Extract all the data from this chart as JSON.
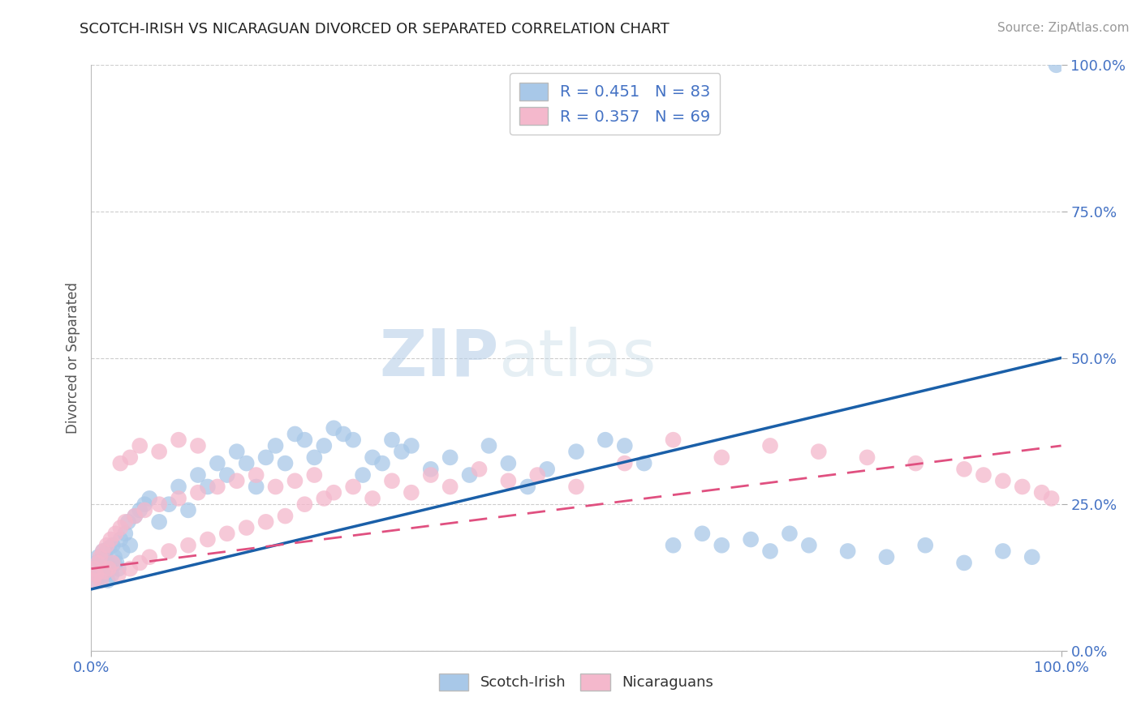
{
  "title": "SCOTCH-IRISH VS NICARAGUAN DIVORCED OR SEPARATED CORRELATION CHART",
  "source": "Source: ZipAtlas.com",
  "ylabel": "Divorced or Separated",
  "ytick_labels": [
    "0.0%",
    "25.0%",
    "50.0%",
    "75.0%",
    "100.0%"
  ],
  "ytick_vals": [
    0,
    25,
    50,
    75,
    100
  ],
  "series1_name": "Scotch-Irish",
  "series1_R": 0.451,
  "series1_N": 83,
  "series1_color": "#a8c8e8",
  "series1_line_color": "#1a5fa8",
  "series2_name": "Nicaraguans",
  "series2_R": 0.357,
  "series2_N": 69,
  "series2_color": "#f4b8cc",
  "series2_line_color": "#e05080",
  "background_color": "#ffffff",
  "grid_color": "#c8c8c8",
  "tick_color": "#4472c4",
  "title_color": "#222222",
  "watermark_color": "#dce8f0",
  "xlim": [
    0,
    100
  ],
  "ylim": [
    0,
    100
  ],
  "series1_x": [
    0.2,
    0.4,
    0.5,
    0.6,
    0.7,
    0.8,
    0.9,
    1.0,
    1.1,
    1.2,
    1.3,
    1.4,
    1.5,
    1.6,
    1.7,
    1.8,
    2.0,
    2.1,
    2.2,
    2.4,
    2.6,
    2.8,
    3.0,
    3.2,
    3.5,
    3.8,
    4.0,
    4.5,
    5.0,
    5.5,
    6.0,
    7.0,
    8.0,
    9.0,
    10.0,
    11.0,
    12.0,
    13.0,
    14.0,
    15.0,
    16.0,
    17.0,
    18.0,
    19.0,
    20.0,
    21.0,
    22.0,
    23.0,
    24.0,
    25.0,
    26.0,
    27.0,
    28.0,
    29.0,
    30.0,
    31.0,
    32.0,
    33.0,
    35.0,
    37.0,
    39.0,
    41.0,
    43.0,
    45.0,
    47.0,
    50.0,
    53.0,
    55.0,
    57.0,
    60.0,
    63.0,
    65.0,
    68.0,
    70.0,
    72.0,
    74.0,
    78.0,
    82.0,
    86.0,
    90.0,
    94.0,
    97.0,
    99.5
  ],
  "series1_y": [
    14.0,
    13.0,
    15.0,
    12.0,
    16.0,
    13.5,
    14.5,
    15.5,
    12.5,
    17.0,
    13.0,
    16.5,
    14.0,
    15.0,
    12.0,
    17.5,
    14.0,
    13.0,
    18.0,
    16.0,
    15.0,
    14.0,
    19.0,
    17.0,
    20.0,
    22.0,
    18.0,
    23.0,
    24.0,
    25.0,
    26.0,
    22.0,
    25.0,
    28.0,
    24.0,
    30.0,
    28.0,
    32.0,
    30.0,
    34.0,
    32.0,
    28.0,
    33.0,
    35.0,
    32.0,
    37.0,
    36.0,
    33.0,
    35.0,
    38.0,
    37.0,
    36.0,
    30.0,
    33.0,
    32.0,
    36.0,
    34.0,
    35.0,
    31.0,
    33.0,
    30.0,
    35.0,
    32.0,
    28.0,
    31.0,
    34.0,
    36.0,
    35.0,
    32.0,
    18.0,
    20.0,
    18.0,
    19.0,
    17.0,
    20.0,
    18.0,
    17.0,
    16.0,
    18.0,
    15.0,
    17.0,
    16.0,
    100.0
  ],
  "series2_x": [
    0.2,
    0.3,
    0.5,
    0.7,
    0.9,
    1.0,
    1.2,
    1.4,
    1.6,
    1.8,
    2.0,
    2.2,
    2.5,
    2.8,
    3.0,
    3.5,
    4.0,
    4.5,
    5.0,
    5.5,
    6.0,
    7.0,
    8.0,
    9.0,
    10.0,
    11.0,
    12.0,
    13.0,
    14.0,
    15.0,
    16.0,
    17.0,
    18.0,
    19.0,
    20.0,
    21.0,
    22.0,
    23.0,
    24.0,
    25.0,
    27.0,
    29.0,
    31.0,
    33.0,
    35.0,
    37.0,
    40.0,
    43.0,
    46.0,
    50.0,
    55.0,
    60.0,
    65.0,
    70.0,
    75.0,
    80.0,
    85.0,
    90.0,
    92.0,
    94.0,
    96.0,
    98.0,
    99.0,
    3.0,
    4.0,
    5.0,
    7.0,
    9.0,
    11.0
  ],
  "series2_y": [
    12.0,
    14.0,
    13.0,
    15.0,
    16.0,
    12.0,
    17.0,
    13.5,
    18.0,
    14.0,
    19.0,
    15.0,
    20.0,
    13.0,
    21.0,
    22.0,
    14.0,
    23.0,
    15.0,
    24.0,
    16.0,
    25.0,
    17.0,
    26.0,
    18.0,
    27.0,
    19.0,
    28.0,
    20.0,
    29.0,
    21.0,
    30.0,
    22.0,
    28.0,
    23.0,
    29.0,
    25.0,
    30.0,
    26.0,
    27.0,
    28.0,
    26.0,
    29.0,
    27.0,
    30.0,
    28.0,
    31.0,
    29.0,
    30.0,
    28.0,
    32.0,
    36.0,
    33.0,
    35.0,
    34.0,
    33.0,
    32.0,
    31.0,
    30.0,
    29.0,
    28.0,
    27.0,
    26.0,
    32.0,
    33.0,
    35.0,
    34.0,
    36.0,
    35.0
  ],
  "line1_x0": 0,
  "line1_y0": 10.5,
  "line1_x1": 100,
  "line1_y1": 50.0,
  "line2_x0": 0,
  "line2_y0": 14.0,
  "line2_x1": 100,
  "line2_y1": 35.0
}
